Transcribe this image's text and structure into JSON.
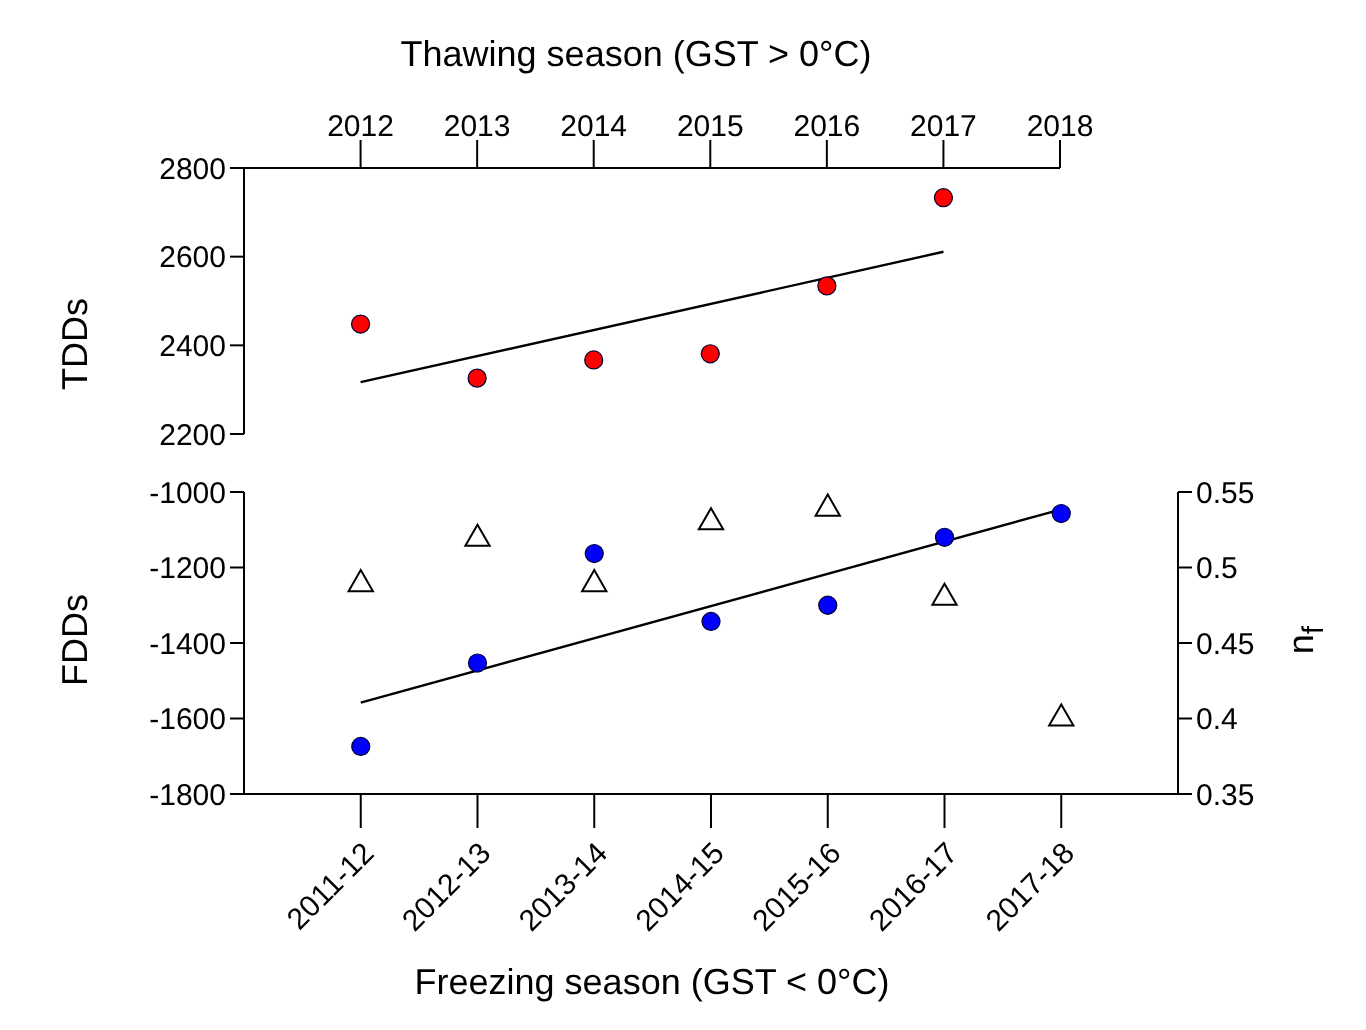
{
  "chart_data": [
    {
      "type": "scatter",
      "xlabel": "Thawing season (GST > 0°C)",
      "ylabel": "TDDs",
      "x": [
        2012,
        2013,
        2014,
        2015,
        2016,
        2017
      ],
      "xlim": [
        2011,
        2018
      ],
      "xticks": [
        2012,
        2013,
        2014,
        2015,
        2016,
        2017,
        2018
      ],
      "ylim": [
        2200,
        2800
      ],
      "yticks": [
        2200,
        2400,
        2600,
        2800
      ],
      "series": [
        {
          "type": "scatter",
          "marker": "circle",
          "color": "#ff0000",
          "values": [
            2448,
            2326,
            2367,
            2381,
            2534,
            2733
          ]
        },
        {
          "type": "line",
          "marker": "none",
          "color": "#000000",
          "x": [
            2012,
            2017
          ],
          "values": [
            2317,
            2611
          ]
        }
      ]
    },
    {
      "type": "scatter",
      "xlabel": "Freezing season (GST < 0°C)",
      "ylabel": "FDDs",
      "y2label": "n$_{f}$",
      "categories": [
        "2011-12",
        "2012-13",
        "2013-14",
        "2014-15",
        "2015-16",
        "2016-17",
        "2017-18"
      ],
      "ylim": [
        -1800,
        -1000
      ],
      "yticks": [
        -1800,
        -1600,
        -1400,
        -1200,
        -1000
      ],
      "y2lim": [
        0.35,
        0.55
      ],
      "y2ticks": [
        0.35,
        0.4,
        0.45,
        0.5,
        0.55
      ],
      "series": [
        {
          "type": "scatter",
          "marker": "circle",
          "color": "#0000ff",
          "values": [
            -1674,
            -1453,
            -1163,
            -1343,
            -1300,
            -1120,
            -1057
          ]
        },
        {
          "type": "line",
          "marker": "none",
          "color": "#000000",
          "values": [
            -1558,
            null,
            null,
            null,
            null,
            null,
            -1046
          ]
        },
        {
          "type": "scatter",
          "marker": "triangle",
          "axis": "y2",
          "color": "#000000",
          "values": [
            0.489,
            0.519,
            0.489,
            0.53,
            0.539,
            0.48,
            0.4
          ]
        }
      ]
    }
  ]
}
